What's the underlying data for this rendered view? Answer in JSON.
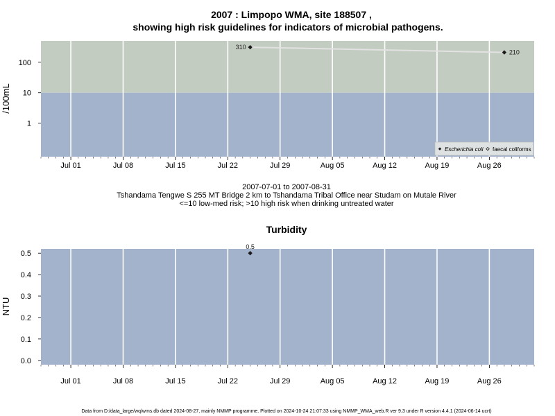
{
  "title_line1": "2007 : Limpopo WMA, site 188507 ,",
  "title_line2": "showing high risk guidelines for indicators of microbial pathogens.",
  "subtitle_lines": [
    "2007-07-01 to 2007-08-31",
    "Tshandama Tengwe S 255 MT Bridge 2 km to Tshandama Tribal Office near Studam on Mutale River",
    "<=10 low-med risk; >10 high risk when drinking untreated water"
  ],
  "footer": "Data from D:/data_large/wq/wms.db dated 2024-08-27, mainly NMMP programme. Plotted on 2024-10-24 21:07:33 using NMMP_WMA_web.R ver 9.3 under R version 4.4.1 (2024-06-14 ucrt)",
  "colors": {
    "high_risk_band": "#c3ccc0",
    "low_risk_band": "#a2b3cb",
    "grid": "#ffffff",
    "marker": "#1a1a1a",
    "line": "#e2e2e2"
  },
  "chart_data": [
    {
      "type": "line",
      "title": "",
      "xlabel": "",
      "ylabel": "/100mL",
      "yscale": "log",
      "ylim": [
        0.08,
        500
      ],
      "xlim": [
        "2007-06-27",
        "2007-09-01"
      ],
      "x_ticks": [
        "Jul 01",
        "Jul 08",
        "Jul 15",
        "Jul 22",
        "Jul 29",
        "Aug 05",
        "Aug 12",
        "Aug 19",
        "Aug 26"
      ],
      "y_ticks": [
        "1",
        "10",
        "100"
      ],
      "threshold": 10,
      "grid": true,
      "legend_position": "bottom-right",
      "series": [
        {
          "name": "Escherichia coli",
          "marker": "diamond-filled",
          "points": [
            {
              "x": "2007-07-25",
              "y": 310,
              "label": "310"
            },
            {
              "x": "2007-08-28",
              "y": 210,
              "label": "210"
            }
          ]
        },
        {
          "name": "faecal coliforms",
          "marker": "diamond-open",
          "points": []
        }
      ]
    },
    {
      "type": "scatter",
      "title": "Turbidity",
      "xlabel": "",
      "ylabel": "NTU",
      "ylim": [
        -0.02,
        0.52
      ],
      "xlim": [
        "2007-06-27",
        "2007-09-01"
      ],
      "x_ticks": [
        "Jul 01",
        "Jul 08",
        "Jul 15",
        "Jul 22",
        "Jul 29",
        "Aug 05",
        "Aug 12",
        "Aug 19",
        "Aug 26"
      ],
      "y_ticks": [
        "0.0",
        "0.1",
        "0.2",
        "0.3",
        "0.4",
        "0.5"
      ],
      "grid": true,
      "series": [
        {
          "points": [
            {
              "x": "2007-07-25",
              "y": 0.5,
              "label": "0.5"
            }
          ]
        }
      ]
    }
  ]
}
